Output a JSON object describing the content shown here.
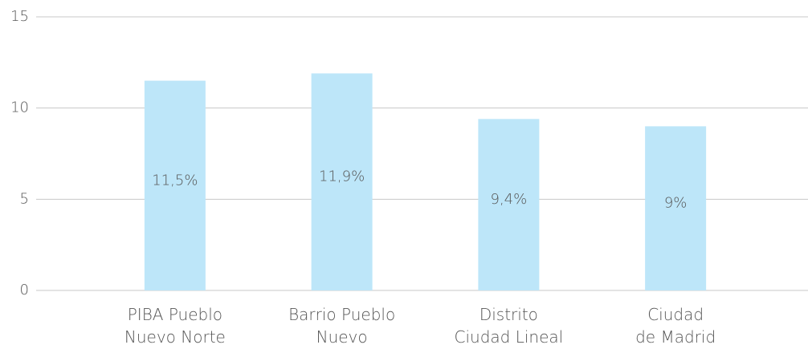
{
  "chart_data": {
    "type": "bar",
    "categories": [
      "PIBA Pueblo\nNuevo Norte",
      "Barrio Pueblo\nNuevo",
      "Distrito\nCiudad Lineal",
      "Ciudad\nde Madrid"
    ],
    "values": [
      11.5,
      11.9,
      9.4,
      9
    ],
    "value_labels": [
      "11,5%",
      "11,9%",
      "9,4%",
      "9%"
    ],
    "color": "#bde6f9",
    "ylim": [
      0,
      15
    ],
    "yticks": [
      0,
      5,
      10,
      15
    ],
    "grid": true
  }
}
